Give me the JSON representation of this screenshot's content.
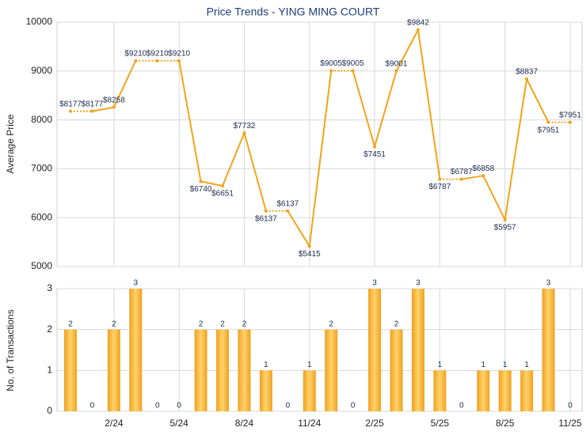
{
  "chart_data": [
    {
      "type": "line",
      "title": "Price Trends - YING MING COURT",
      "y_label": "Average Price",
      "values": [
        8177,
        8177,
        8258,
        9210,
        9210,
        9210,
        6740,
        6651,
        7732,
        6137,
        6137,
        5415,
        9005,
        9005,
        7451,
        9001,
        9842,
        6787,
        6787,
        6858,
        5957,
        8837,
        7951,
        7951
      ],
      "value_labels": [
        "$8177",
        "$8177",
        "$8258",
        "$9210",
        "$9210",
        "$9210",
        "$6740",
        "$6651",
        "$7732",
        "$6137",
        "$6137",
        "$5415",
        "$9005",
        "$9005",
        "$7451",
        "$9001",
        "$9842",
        "$6787",
        "$6787",
        "$6858",
        "$5957",
        "$8837",
        "$7951",
        "$7951"
      ],
      "color": "#f5a31a",
      "ylim": [
        5000,
        10000
      ],
      "yticks": [
        5000,
        6000,
        7000,
        8000,
        9000,
        10000
      ],
      "grid": true
    },
    {
      "type": "bar",
      "y_label": "No. of Transactions",
      "categories": [
        null,
        null,
        "2/24",
        null,
        null,
        "5/24",
        null,
        null,
        "8/24",
        null,
        null,
        "11/24",
        null,
        null,
        "2/25",
        null,
        null,
        "5/25",
        null,
        null,
        "8/25",
        null,
        null,
        "11/25"
      ],
      "values": [
        2,
        0,
        2,
        3,
        0,
        0,
        2,
        2,
        2,
        1,
        0,
        1,
        2,
        0,
        3,
        2,
        3,
        1,
        0,
        1,
        1,
        1,
        3,
        0
      ],
      "color": "#f0a020",
      "ylim": [
        0,
        3
      ],
      "yticks": [
        0,
        1,
        2,
        3
      ],
      "grid": true
    }
  ]
}
